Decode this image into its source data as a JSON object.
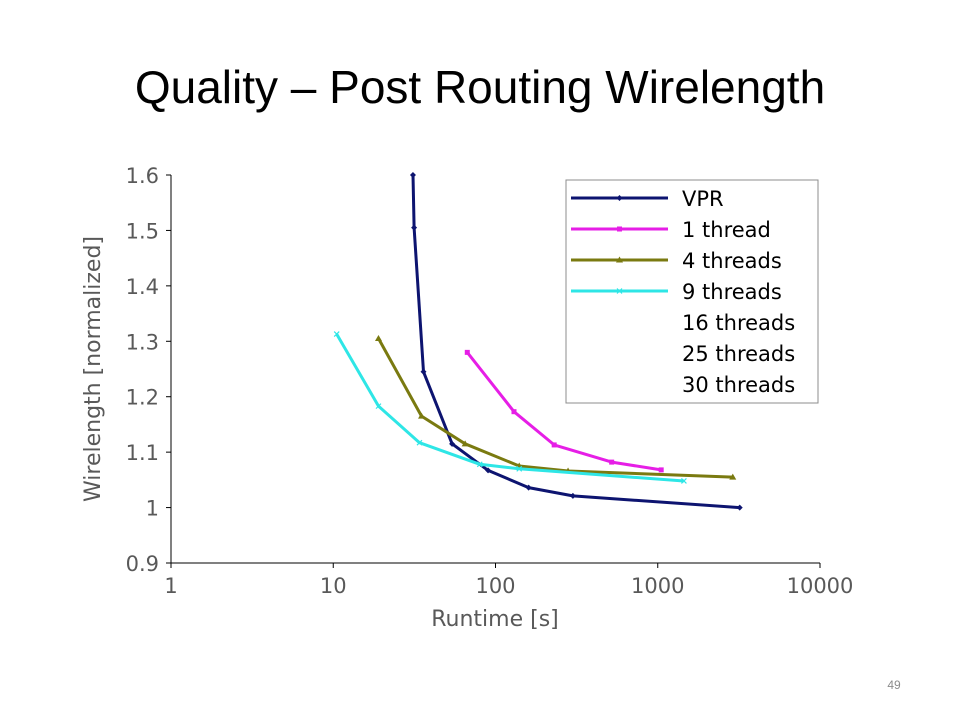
{
  "slide": {
    "title": "Quality – Post Routing Wirelength",
    "page_number": "49"
  },
  "chart_data": {
    "type": "line",
    "xlabel": "Runtime [s]",
    "ylabel": "Wirelength [normalized]",
    "xscale": "log",
    "xlim": [
      1,
      10000
    ],
    "ylim": [
      0.9,
      1.6
    ],
    "xticks": [
      "1",
      "10",
      "100",
      "1000",
      "10000"
    ],
    "yticks": [
      "0.9",
      "1",
      "1.1",
      "1.2",
      "1.3",
      "1.4",
      "1.5",
      "1.6"
    ],
    "grid": false,
    "legend_position": "top-right",
    "legend": [
      "VPR",
      "1 thread",
      "4 threads",
      "9 threads",
      "16 threads",
      "25 threads",
      "30 threads"
    ],
    "series": [
      {
        "name": "VPR",
        "color": "#0d1470",
        "marker": "diamond",
        "x": [
          31,
          31.5,
          36,
          54,
          90,
          160,
          300,
          3200
        ],
        "y": [
          1.6,
          1.505,
          1.245,
          1.115,
          1.067,
          1.036,
          1.021,
          1.0
        ]
      },
      {
        "name": "1 thread",
        "color": "#e61ee6",
        "marker": "square",
        "x": [
          67,
          130,
          230,
          520,
          1050
        ],
        "y": [
          1.28,
          1.173,
          1.113,
          1.082,
          1.068
        ]
      },
      {
        "name": "4 threads",
        "color": "#7a7a10",
        "marker": "triangle",
        "x": [
          19,
          35,
          65,
          140,
          280,
          2900
        ],
        "y": [
          1.305,
          1.165,
          1.115,
          1.075,
          1.066,
          1.055
        ]
      },
      {
        "name": "9 threads",
        "color": "#2ee6e6",
        "marker": "x",
        "x": [
          10.5,
          19,
          34,
          80,
          140,
          1450
        ],
        "y": [
          1.313,
          1.183,
          1.117,
          1.078,
          1.07,
          1.048
        ]
      },
      {
        "name": "16 threads",
        "color": "#ffffff",
        "marker": "none",
        "x": [],
        "y": []
      },
      {
        "name": "25 threads",
        "color": "#ffffff",
        "marker": "none",
        "x": [],
        "y": []
      },
      {
        "name": "30 threads",
        "color": "#ffffff",
        "marker": "none",
        "x": [],
        "y": []
      }
    ]
  }
}
